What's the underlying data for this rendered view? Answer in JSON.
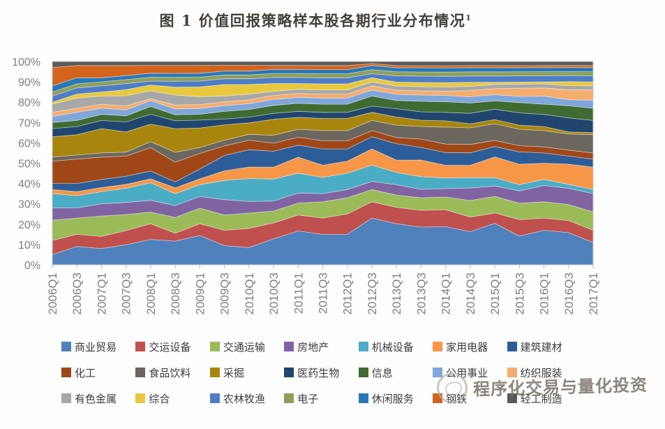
{
  "title": {
    "text": "图 1  价值回报策略样本股各期行业分布情况",
    "footnote": "1"
  },
  "watermark": {
    "text": "程序化交易与量化投资"
  },
  "colors": {
    "axis_text": "#7f7f7f",
    "plot_border": "#c9c9c9",
    "tick": "#b5b5b5",
    "title_text": "#45403a",
    "legend_text": "#3c3c3c",
    "watermark_text": "#7d756c",
    "page_background": "#fdfdfd"
  },
  "chart_data": {
    "type": "area",
    "stacking": "percent",
    "title": "图 1 价值回报策略样本股各期行业分布情况",
    "xlabel": "",
    "ylabel": "",
    "ylim": [
      0,
      100
    ],
    "y_ticks": [
      "0%",
      "10%",
      "20%",
      "30%",
      "40%",
      "50%",
      "60%",
      "70%",
      "80%",
      "90%",
      "100%"
    ],
    "grid": false,
    "legend_position": "bottom",
    "x": [
      "2006Q1",
      "2006Q3",
      "2007Q1",
      "2007Q3",
      "2008Q1",
      "2008Q3",
      "2009Q1",
      "2009Q3",
      "2010Q1",
      "2010Q3",
      "2011Q1",
      "2011Q3",
      "2012Q1",
      "2012Q3",
      "2013Q1",
      "2013Q3",
      "2014Q1",
      "2014Q3",
      "2015Q1",
      "2015Q3",
      "2016Q1",
      "2016Q3",
      "2017Q1"
    ],
    "series": [
      {
        "name": "商业贸易",
        "color": "#4F81BD",
        "values": [
          5,
          9,
          8,
          10,
          13,
          12,
          15,
          10,
          9,
          13,
          17,
          15,
          15,
          23,
          20,
          18,
          18,
          16,
          20,
          14,
          17,
          16,
          11
        ]
      },
      {
        "name": "交运设备",
        "color": "#C0504D",
        "values": [
          7,
          6,
          6,
          7,
          8,
          4,
          6,
          8,
          10,
          8,
          8,
          8,
          10,
          8,
          8,
          8,
          8,
          7,
          5,
          8,
          6,
          6,
          6
        ]
      },
      {
        "name": "交通运输",
        "color": "#9BBB59",
        "values": [
          10,
          8,
          10,
          8,
          6,
          8,
          8,
          8,
          8,
          6,
          6,
          8,
          8,
          6,
          6,
          6,
          6,
          8,
          8,
          8,
          8,
          8,
          9
        ]
      },
      {
        "name": "房地产",
        "color": "#8064A2",
        "values": [
          6,
          5,
          6,
          6,
          6,
          6,
          6,
          8,
          6,
          5,
          5,
          4,
          4,
          4,
          5,
          4,
          4,
          6,
          5,
          6,
          8,
          8,
          9
        ]
      },
      {
        "name": "机械设备",
        "color": "#4BACC6",
        "values": [
          7,
          6,
          6,
          7,
          9,
          6,
          6,
          10,
          12,
          11,
          10,
          8,
          8,
          8,
          6,
          6,
          5,
          5,
          4,
          3,
          3,
          2,
          2
        ]
      },
      {
        "name": "家用电器",
        "color": "#F79646",
        "values": [
          2,
          2,
          2,
          2,
          2,
          3,
          3,
          5,
          6,
          6,
          8,
          6,
          6,
          8,
          6,
          8,
          6,
          6,
          10,
          10,
          8,
          10,
          11
        ]
      },
      {
        "name": "建筑建材",
        "color": "#2C5D98",
        "values": [
          3,
          4,
          4,
          4,
          4,
          3,
          5,
          8,
          9,
          8,
          6,
          8,
          6,
          6,
          8,
          6,
          6,
          6,
          5,
          6,
          5,
          4,
          4
        ]
      },
      {
        "name": "化工",
        "color": "#A04718",
        "values": [
          11,
          12,
          11,
          10,
          12,
          10,
          8,
          5,
          5,
          4,
          4,
          4,
          4,
          3,
          3,
          4,
          4,
          4,
          3,
          3,
          3,
          3,
          3
        ]
      },
      {
        "name": "食品饮料",
        "color": "#6B675F",
        "values": [
          2,
          2,
          2,
          2,
          3,
          5,
          3,
          3,
          3,
          4,
          4,
          5,
          5,
          5,
          6,
          6,
          8,
          8,
          8,
          8,
          8,
          8,
          9
        ]
      },
      {
        "name": "采掘",
        "color": "#A8860D",
        "values": [
          10,
          10,
          12,
          10,
          9,
          12,
          10,
          8,
          6,
          8,
          6,
          6,
          6,
          4,
          4,
          3,
          3,
          2,
          2,
          2,
          2,
          1,
          1
        ]
      },
      {
        "name": "医药生物",
        "color": "#20456F",
        "values": [
          4,
          4,
          4,
          5,
          5,
          4,
          4,
          3,
          3,
          3,
          3,
          3,
          3,
          3,
          4,
          4,
          4,
          5,
          5,
          6,
          6,
          7,
          6
        ]
      },
      {
        "name": "信息",
        "color": "#3F6B32",
        "values": [
          3,
          3,
          3,
          3,
          4,
          3,
          3,
          4,
          4,
          4,
          4,
          4,
          4,
          5,
          4,
          5,
          5,
          5,
          4,
          5,
          5,
          6,
          6
        ]
      },
      {
        "name": "公用事业",
        "color": "#7FA7DC",
        "values": [
          3,
          4,
          3,
          3,
          3,
          3,
          3,
          3,
          3,
          3,
          3,
          3,
          3,
          3,
          3,
          3,
          3,
          3,
          3,
          3,
          4,
          3,
          4
        ]
      },
      {
        "name": "纺织服装",
        "color": "#F5AD6E",
        "values": [
          2,
          2,
          2,
          2,
          1,
          2,
          2,
          2,
          2,
          2,
          2,
          2,
          2,
          2,
          2,
          2,
          2,
          3,
          3,
          4,
          4,
          5,
          5
        ]
      },
      {
        "name": "有色金属",
        "color": "#A8A8A8",
        "values": [
          4,
          5,
          4,
          5,
          4,
          5,
          4,
          3,
          3,
          2,
          2,
          2,
          2,
          2,
          2,
          2,
          2,
          2,
          2,
          2,
          2,
          2,
          2
        ]
      },
      {
        "name": "综合",
        "color": "#E8C93E",
        "values": [
          1,
          2,
          2,
          3,
          3,
          4,
          5,
          6,
          5,
          4,
          3,
          3,
          3,
          2,
          2,
          2,
          2,
          2,
          1,
          1,
          1,
          2,
          2
        ]
      },
      {
        "name": "农林牧渔",
        "color": "#4E7DC8",
        "values": [
          3,
          3,
          3,
          3,
          2,
          3,
          3,
          3,
          3,
          3,
          3,
          3,
          3,
          2,
          3,
          3,
          3,
          3,
          3,
          3,
          3,
          3,
          3
        ]
      },
      {
        "name": "电子",
        "color": "#8F9F5A",
        "values": [
          2,
          2,
          2,
          2,
          2,
          2,
          2,
          2,
          2,
          2,
          2,
          2,
          2,
          2,
          2,
          2,
          2,
          2,
          2,
          2,
          2,
          2,
          2
        ]
      },
      {
        "name": "休闲服务",
        "color": "#2878B8",
        "values": [
          3,
          3,
          2,
          2,
          2,
          2,
          2,
          2,
          2,
          2,
          2,
          2,
          2,
          2,
          2,
          2,
          2,
          2,
          2,
          2,
          2,
          2,
          2
        ]
      },
      {
        "name": "钢铁",
        "color": "#D4641C",
        "values": [
          9,
          6,
          6,
          5,
          4,
          4,
          4,
          3,
          3,
          2,
          2,
          2,
          2,
          1,
          1,
          1,
          1,
          1,
          1,
          1,
          1,
          1,
          1
        ]
      },
      {
        "name": "轻工制造",
        "color": "#5A5A5A",
        "values": [
          3,
          2,
          2,
          2,
          2,
          2,
          2,
          2,
          2,
          2,
          2,
          2,
          2,
          1,
          2,
          2,
          2,
          2,
          2,
          2,
          2,
          2,
          2
        ]
      }
    ]
  }
}
